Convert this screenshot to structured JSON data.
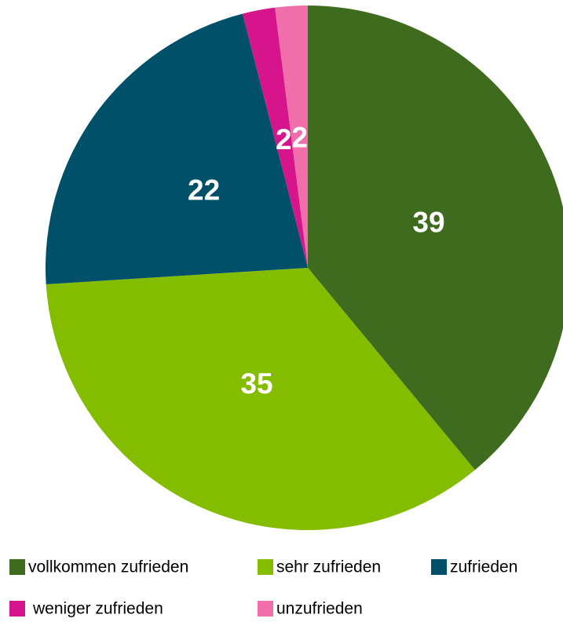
{
  "chart_data": {
    "type": "pie",
    "categories": [
      "vollkommen zufrieden",
      "sehr zufrieden",
      "zufrieden",
      "weniger zufrieden",
      "unzufrieden"
    ],
    "values": [
      39,
      35,
      22,
      2,
      2
    ],
    "colors": [
      "#3f6b1e",
      "#84bd00",
      "#00506a",
      "#d6158c",
      "#f06eaa"
    ]
  }
}
